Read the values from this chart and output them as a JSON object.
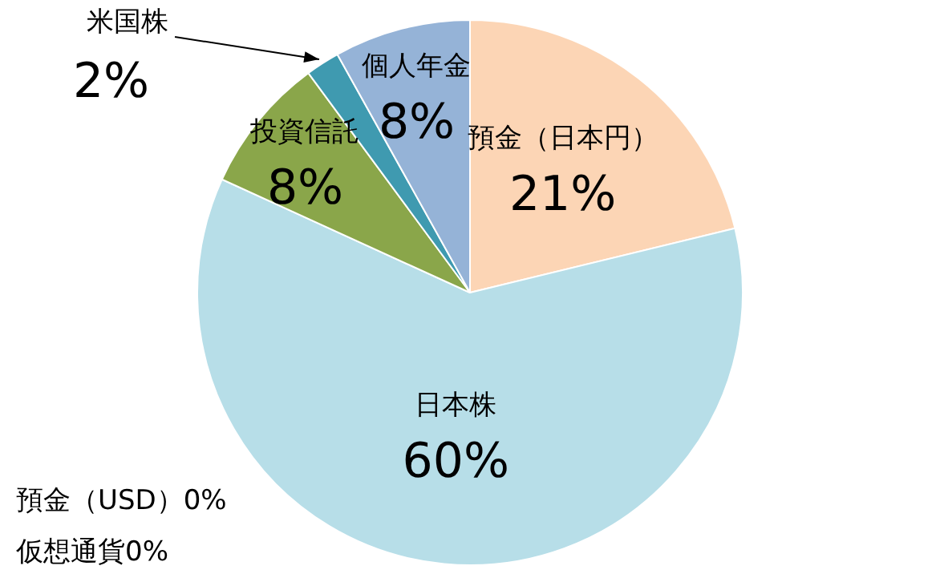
{
  "chart_data": {
    "type": "pie",
    "categories": [
      "預金（日本円）",
      "日本株",
      "預金（USD）",
      "仮想通貨",
      "投資信託",
      "米国株",
      "個人年金"
    ],
    "values": [
      21,
      60,
      0,
      0,
      8,
      2,
      8
    ],
    "value_labels": [
      "21%",
      "60%",
      "0%",
      "0%",
      "8%",
      "2%",
      "8%"
    ],
    "colors": [
      "#fcd5b5",
      "#b7dee8",
      "#c0504d",
      "#f79646",
      "#8aa64a",
      "#3f9ab0",
      "#95b3d7"
    ],
    "legend": false
  }
}
